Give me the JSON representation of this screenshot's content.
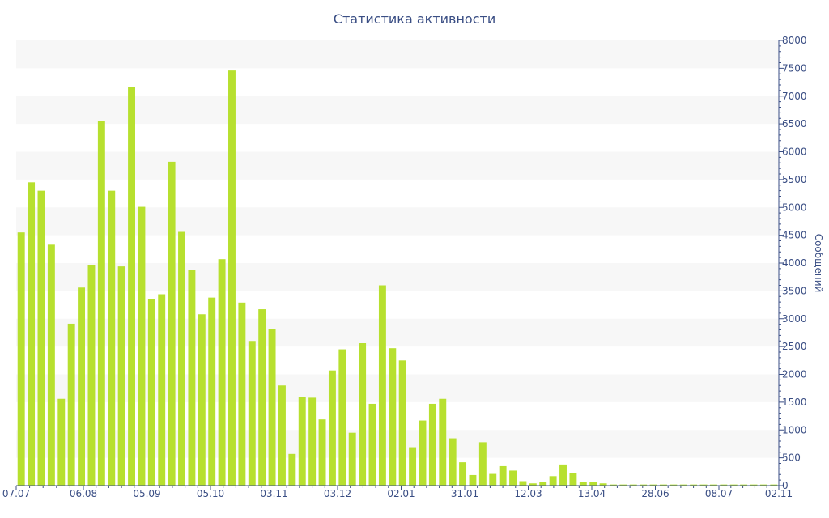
{
  "chart_data": {
    "type": "bar",
    "title": "Статистика активности",
    "ylabel": "Сообщений",
    "xlabel": "",
    "ylim": [
      0,
      8000
    ],
    "y_ticks": [
      0,
      500,
      1000,
      1500,
      2000,
      2500,
      3000,
      3500,
      4000,
      4500,
      5000,
      5500,
      6000,
      6500,
      7000,
      7500,
      8000
    ],
    "y_axis_side": "right",
    "x_tick_labels": [
      "07.07",
      "06.08",
      "05.09",
      "05.10",
      "03.11",
      "03.12",
      "02.01",
      "31.01",
      "12.03",
      "13.04",
      "28.06",
      "08.07",
      "02.11"
    ],
    "bar_color": "#b7e02f",
    "grid": "horizontal alternating bands",
    "values": [
      4550,
      5450,
      5300,
      4330,
      1560,
      2910,
      3560,
      3970,
      6550,
      5300,
      3940,
      7160,
      5010,
      3350,
      3440,
      5820,
      4560,
      3870,
      3080,
      3380,
      4070,
      7460,
      3290,
      2600,
      3170,
      2820,
      1800,
      570,
      1600,
      1580,
      1190,
      2070,
      2450,
      950,
      2560,
      1470,
      3600,
      2470,
      2250,
      690,
      1170,
      1470,
      1560,
      850,
      420,
      190,
      780,
      210,
      350,
      270,
      80,
      40,
      60,
      170,
      380,
      220,
      60,
      60,
      40,
      20,
      20,
      20,
      20,
      20,
      20,
      20,
      20,
      20,
      20,
      20,
      20,
      20,
      20,
      20,
      20,
      20
    ]
  }
}
